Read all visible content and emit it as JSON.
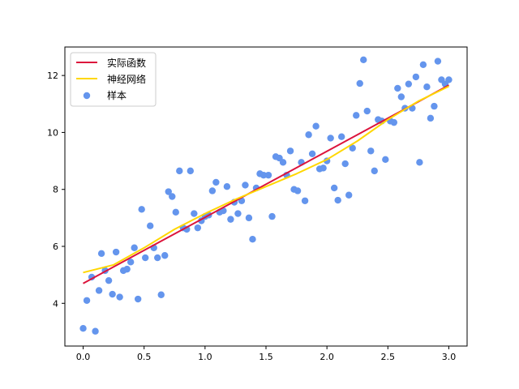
{
  "chart_data": {
    "type": "scatter",
    "xlim": [
      -0.15,
      3.15
    ],
    "ylim": [
      2.5,
      13.0
    ],
    "xticks": [
      0.0,
      0.5,
      1.0,
      1.5,
      2.0,
      2.5,
      3.0
    ],
    "xtick_labels": [
      "0.0",
      "0.5",
      "1.0",
      "1.5",
      "2.0",
      "2.5",
      "3.0"
    ],
    "yticks": [
      4,
      6,
      8,
      10,
      12
    ],
    "ytick_labels": [
      "4",
      "6",
      "8",
      "10",
      "12"
    ],
    "grid": false,
    "legend_position": "top-left",
    "series": [
      {
        "name": "实际函数",
        "kind": "line",
        "color": "#dc143c",
        "x": [
          0.0,
          0.5,
          1.0,
          1.5,
          2.0,
          2.5,
          3.0
        ],
        "y": [
          4.7,
          5.86,
          7.02,
          8.18,
          9.34,
          10.5,
          11.66
        ]
      },
      {
        "name": "神经网络",
        "kind": "line",
        "color": "#ffd700",
        "x": [
          0.0,
          0.25,
          0.5,
          0.75,
          1.0,
          1.25,
          1.5,
          1.75,
          2.0,
          2.25,
          2.5,
          2.75,
          3.0
        ],
        "y": [
          5.08,
          5.35,
          5.95,
          6.6,
          7.15,
          7.65,
          8.1,
          8.55,
          9.05,
          9.7,
          10.45,
          11.1,
          11.62
        ]
      },
      {
        "name": "样本",
        "kind": "scatter",
        "color": "#6495ed",
        "x": [
          0.0,
          0.03,
          0.07,
          0.1,
          0.13,
          0.15,
          0.18,
          0.21,
          0.24,
          0.27,
          0.3,
          0.33,
          0.36,
          0.39,
          0.42,
          0.45,
          0.48,
          0.51,
          0.55,
          0.58,
          0.61,
          0.64,
          0.67,
          0.7,
          0.73,
          0.76,
          0.79,
          0.82,
          0.85,
          0.88,
          0.91,
          0.94,
          0.97,
          1.0,
          1.03,
          1.06,
          1.09,
          1.12,
          1.15,
          1.18,
          1.21,
          1.24,
          1.27,
          1.3,
          1.33,
          1.36,
          1.39,
          1.42,
          1.45,
          1.48,
          1.52,
          1.55,
          1.58,
          1.61,
          1.64,
          1.67,
          1.7,
          1.73,
          1.76,
          1.79,
          1.82,
          1.85,
          1.88,
          1.91,
          1.94,
          1.97,
          2.0,
          2.03,
          2.06,
          2.09,
          2.12,
          2.15,
          2.18,
          2.21,
          2.24,
          2.27,
          2.3,
          2.33,
          2.36,
          2.39,
          2.42,
          2.45,
          2.48,
          2.52,
          2.55,
          2.58,
          2.61,
          2.64,
          2.67,
          2.7,
          2.73,
          2.76,
          2.79,
          2.82,
          2.85,
          2.88,
          2.91,
          2.94,
          2.97,
          3.0
        ],
        "y": [
          3.12,
          4.1,
          4.92,
          3.02,
          4.45,
          5.75,
          5.15,
          4.8,
          4.32,
          5.8,
          4.22,
          5.15,
          5.2,
          5.45,
          5.95,
          4.15,
          7.3,
          5.6,
          6.72,
          5.95,
          5.6,
          4.3,
          5.68,
          7.92,
          7.75,
          7.2,
          8.65,
          6.65,
          6.6,
          8.65,
          7.15,
          6.65,
          6.9,
          7.05,
          7.1,
          7.95,
          8.25,
          7.2,
          7.25,
          8.1,
          6.95,
          7.55,
          7.15,
          7.6,
          8.15,
          7.0,
          6.25,
          8.05,
          8.55,
          8.5,
          8.5,
          7.05,
          9.15,
          9.1,
          8.95,
          8.5,
          9.35,
          8.0,
          7.95,
          8.95,
          7.6,
          9.92,
          9.25,
          10.22,
          8.72,
          8.75,
          9.0,
          9.8,
          8.05,
          7.62,
          9.85,
          8.9,
          7.8,
          9.45,
          10.6,
          11.72,
          12.55,
          10.75,
          9.35,
          8.65,
          10.45,
          10.4,
          9.05,
          10.4,
          10.35,
          11.55,
          11.25,
          10.85,
          11.7,
          10.85,
          11.95,
          8.95,
          12.38,
          11.6,
          10.5,
          10.92,
          12.5,
          11.85,
          11.7,
          11.85
        ]
      }
    ]
  }
}
